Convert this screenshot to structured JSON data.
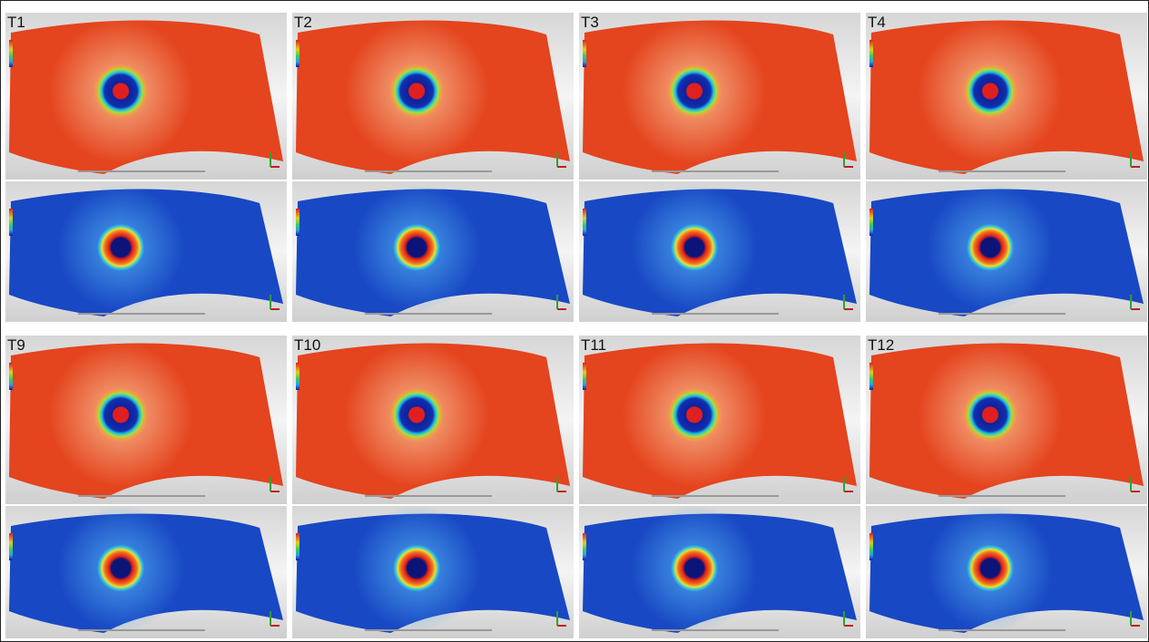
{
  "panels": [
    {
      "label": "T1"
    },
    {
      "label": "T2"
    },
    {
      "label": "T3"
    },
    {
      "label": "T4"
    },
    {
      "label": "T9"
    },
    {
      "label": "T10"
    },
    {
      "label": "T11"
    },
    {
      "label": "T12"
    }
  ]
}
